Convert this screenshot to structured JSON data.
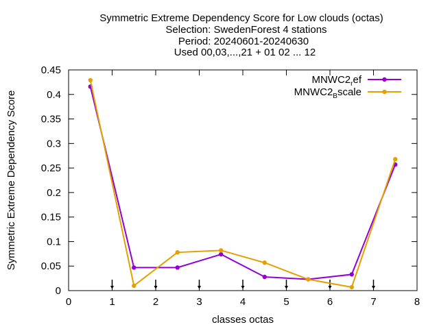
{
  "chart_data": {
    "type": "line",
    "title_lines": [
      "Symmetric Extreme Dependency Score  for Low clouds (octas)",
      "Selection: SwedenForest      4 stations",
      "Period: 20240601-20240630",
      "Used 00,03,...,21 + 01 02 ... 12"
    ],
    "xlabel": "classes octas",
    "ylabel": "Symmetric Extreme Dependency Score",
    "xlim": [
      0,
      8
    ],
    "ylim": [
      0,
      0.45
    ],
    "xticks": [
      "0",
      "1",
      "2",
      "3",
      "4",
      "5",
      "6",
      "7",
      "8"
    ],
    "yticks": [
      "0",
      "0.05",
      "0.1",
      "0.15",
      "0.2",
      "0.25",
      "0.3",
      "0.35",
      "0.4",
      "0.45"
    ],
    "marker_ticks_x": [
      1,
      2,
      3,
      4,
      5,
      6,
      7
    ],
    "legend_position": "top-right",
    "x": [
      0.5,
      1.5,
      2.5,
      3.5,
      4.5,
      5.5,
      6.5,
      7.5
    ],
    "series": [
      {
        "name_main": "MNWC2",
        "name_sub": "r",
        "name_tail": "ef",
        "color": "#9400d3",
        "values": [
          0.416,
          0.047,
          0.047,
          0.074,
          0.028,
          0.023,
          0.033,
          0.257
        ]
      },
      {
        "name_main": "MNWC2",
        "name_sub": "B",
        "name_tail": "scale",
        "color": "#e69f00",
        "values": [
          0.429,
          0.01,
          0.078,
          0.082,
          0.057,
          0.023,
          0.007,
          0.268
        ]
      }
    ]
  }
}
